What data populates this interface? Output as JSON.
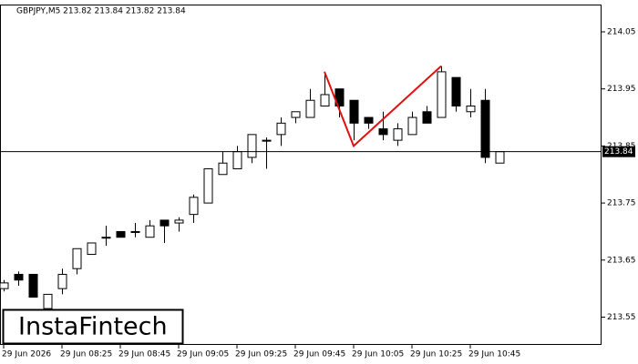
{
  "chart_data": {
    "type": "candlestick",
    "title": "GBPJPY,M5  213.82 213.84 213.82 213.84",
    "watermark": "InstaFintech",
    "categories": [
      "29 Jun 2026",
      null,
      null,
      null,
      "29 Jun 08:25",
      null,
      null,
      null,
      "29 Jun 08:45",
      null,
      null,
      null,
      "29 Jun 09:05",
      null,
      null,
      null,
      "29 Jun 09:25",
      null,
      null,
      null,
      "29 Jun 09:45",
      null,
      null,
      null,
      "29 Jun 10:05",
      null,
      null,
      null,
      "29 Jun 10:25",
      null,
      null,
      null,
      "29 Jun 10:45",
      null,
      null
    ],
    "open": [
      213.6,
      213.625,
      213.625,
      213.565,
      213.6,
      213.635,
      213.66,
      213.69,
      213.7,
      213.7,
      213.69,
      213.72,
      213.715,
      213.73,
      213.75,
      213.8,
      213.81,
      213.83,
      213.86,
      213.87,
      213.9,
      213.9,
      213.92,
      213.95,
      213.93,
      213.9,
      213.88,
      213.86,
      213.87,
      213.91,
      213.9,
      213.97,
      213.91,
      213.93,
      213.82
    ],
    "high": [
      213.615,
      213.63,
      213.625,
      213.59,
      213.635,
      213.67,
      213.68,
      213.71,
      213.7,
      213.715,
      213.72,
      213.72,
      213.725,
      213.765,
      213.81,
      213.84,
      213.85,
      213.87,
      213.865,
      213.9,
      213.91,
      213.95,
      213.98,
      213.95,
      213.93,
      213.9,
      213.91,
      213.89,
      213.91,
      213.92,
      213.99,
      213.97,
      213.95,
      213.95,
      213.84
    ],
    "low": [
      213.595,
      213.605,
      213.585,
      213.565,
      213.59,
      213.625,
      213.66,
      213.675,
      213.69,
      213.69,
      213.69,
      213.68,
      213.7,
      213.715,
      213.75,
      213.8,
      213.81,
      213.82,
      213.81,
      213.85,
      213.89,
      213.9,
      213.92,
      213.9,
      213.86,
      213.88,
      213.86,
      213.85,
      213.87,
      213.89,
      213.9,
      213.91,
      213.9,
      213.82,
      213.82
    ],
    "close": [
      213.61,
      213.615,
      213.585,
      213.59,
      213.625,
      213.67,
      213.68,
      213.69,
      213.69,
      213.7,
      213.71,
      213.71,
      213.72,
      213.76,
      213.81,
      213.82,
      213.84,
      213.87,
      213.86,
      213.89,
      213.91,
      213.93,
      213.94,
      213.92,
      213.89,
      213.89,
      213.87,
      213.88,
      213.9,
      213.89,
      213.98,
      213.92,
      213.92,
      213.83,
      213.84
    ],
    "up_color": "#ffffff",
    "down_color": "#000000",
    "current_price": 213.84,
    "pattern_color": "#e01010",
    "pattern_x": [
      22,
      24,
      30
    ],
    "pattern_values": [
      213.98,
      213.85,
      213.99
    ],
    "ylim": [
      213.5,
      214.1
    ],
    "yticks": [
      214.05,
      213.95,
      213.85,
      213.75,
      213.65,
      213.55
    ]
  }
}
